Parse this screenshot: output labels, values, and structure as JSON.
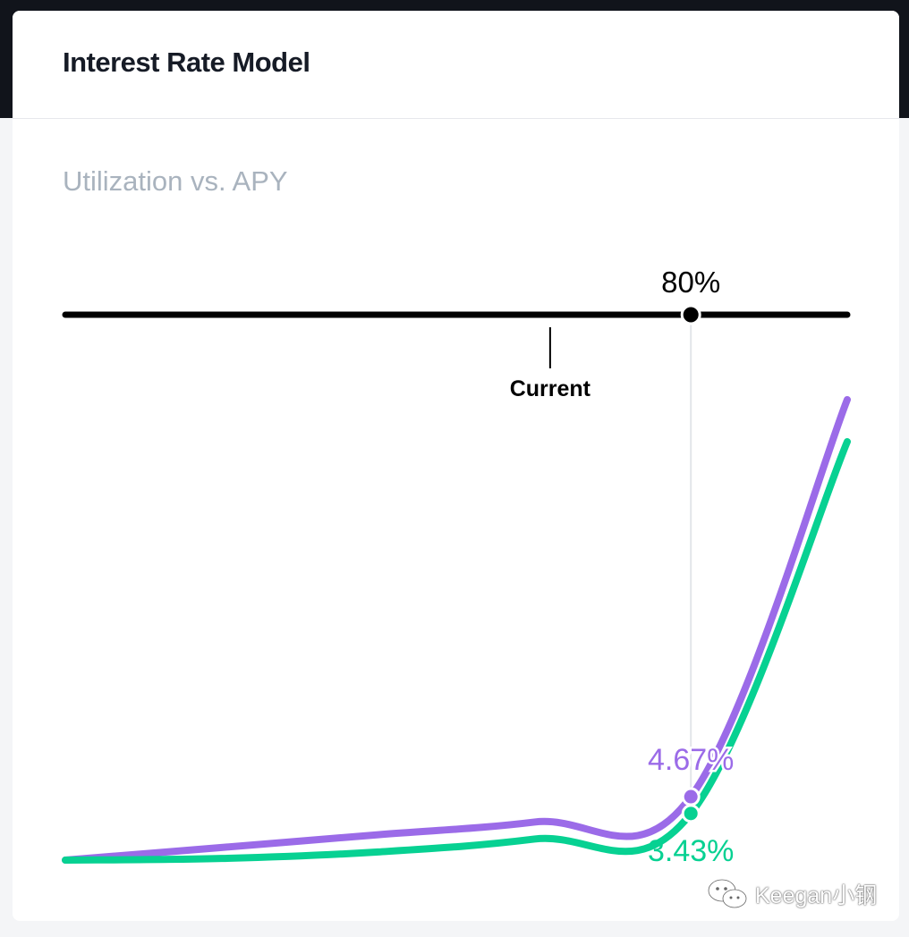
{
  "card": {
    "title": "Interest Rate Model"
  },
  "chart_data": {
    "type": "line",
    "title": "Utilization vs. APY",
    "x_unit": "%",
    "xlim": [
      0,
      100
    ],
    "grid": false,
    "colors": {
      "borrow": "#9b6be8",
      "supply": "#07d192",
      "slider": "#000000"
    },
    "series": [
      {
        "key": "borrow",
        "points": [
          [
            0,
            0.0
          ],
          [
            20,
            0.93
          ],
          [
            40,
            1.87
          ],
          [
            60,
            2.8
          ],
          [
            80,
            4.67
          ],
          [
            100,
            27.4
          ]
        ]
      },
      {
        "key": "supply",
        "points": [
          [
            0,
            0.0
          ],
          [
            20,
            0.12
          ],
          [
            40,
            0.6
          ],
          [
            60,
            1.55
          ],
          [
            80,
            3.43
          ],
          [
            100,
            25.0
          ]
        ]
      }
    ],
    "slider": {
      "selected_utilization": 80,
      "selected_label": "80%",
      "current_utilization": 62,
      "current_label": "Current"
    },
    "annotations": {
      "borrow_value": 4.67,
      "borrow_label": "4.67%",
      "supply_value": 3.43,
      "supply_label": "3.43%"
    }
  },
  "watermark": {
    "text": "Keegan小钢"
  }
}
